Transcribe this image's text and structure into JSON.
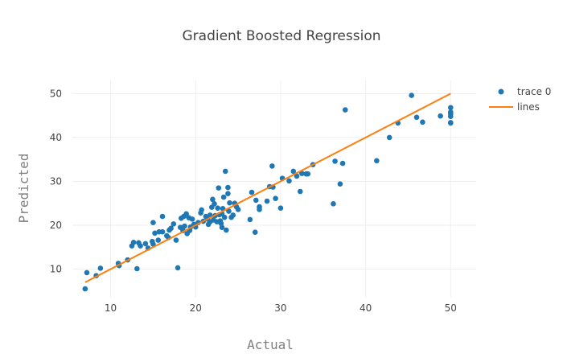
{
  "chart_data": {
    "type": "scatter",
    "title": "Gradient Boosted Regression",
    "xlabel": "Actual",
    "ylabel": "Predicted",
    "xlim": [
      5.5,
      53
    ],
    "ylim": [
      3.5,
      53
    ],
    "xticks": [
      10,
      20,
      30,
      40,
      50
    ],
    "yticks": [
      10,
      20,
      30,
      40,
      50
    ],
    "grid": true,
    "legend_position": "top-right",
    "series": [
      {
        "name": "trace 0",
        "mode": "markers",
        "color": "#1f77b4",
        "points": [
          [
            7.0,
            5.5
          ],
          [
            7.2,
            9.2
          ],
          [
            8.3,
            8.5
          ],
          [
            8.8,
            10.2
          ],
          [
            10.9,
            11.3
          ],
          [
            11.0,
            10.8
          ],
          [
            12.0,
            12.1
          ],
          [
            12.5,
            15.3
          ],
          [
            12.7,
            16.1
          ],
          [
            13.1,
            10.1
          ],
          [
            13.3,
            16.0
          ],
          [
            13.5,
            15.3
          ],
          [
            14.1,
            15.8
          ],
          [
            14.4,
            14.8
          ],
          [
            14.9,
            16.3
          ],
          [
            15.0,
            15.7
          ],
          [
            15.0,
            20.6
          ],
          [
            15.2,
            18.2
          ],
          [
            15.6,
            16.6
          ],
          [
            15.7,
            18.5
          ],
          [
            16.1,
            18.5
          ],
          [
            16.1,
            22.0
          ],
          [
            16.6,
            17.6
          ],
          [
            16.8,
            17.2
          ],
          [
            16.9,
            18.9
          ],
          [
            17.1,
            19.3
          ],
          [
            17.4,
            20.3
          ],
          [
            17.7,
            16.6
          ],
          [
            17.9,
            10.3
          ],
          [
            18.2,
            19.5
          ],
          [
            18.3,
            21.6
          ],
          [
            18.5,
            18.8
          ],
          [
            18.6,
            22.0
          ],
          [
            18.7,
            19.8
          ],
          [
            18.9,
            22.6
          ],
          [
            19.0,
            18.1
          ],
          [
            19.2,
            21.7
          ],
          [
            19.3,
            18.8
          ],
          [
            19.4,
            19.6
          ],
          [
            19.6,
            21.4
          ],
          [
            19.8,
            20.2
          ],
          [
            20.0,
            19.6
          ],
          [
            20.3,
            20.6
          ],
          [
            20.6,
            22.8
          ],
          [
            20.7,
            23.5
          ],
          [
            20.9,
            20.9
          ],
          [
            21.2,
            22.0
          ],
          [
            21.4,
            21.4
          ],
          [
            21.5,
            20.2
          ],
          [
            21.7,
            20.8
          ],
          [
            21.7,
            22.3
          ],
          [
            21.9,
            24.1
          ],
          [
            22.0,
            25.9
          ],
          [
            22.1,
            21.2
          ],
          [
            22.2,
            24.9
          ],
          [
            22.3,
            22.2
          ],
          [
            22.5,
            20.8
          ],
          [
            22.6,
            23.9
          ],
          [
            22.7,
            28.5
          ],
          [
            22.8,
            22.4
          ],
          [
            22.9,
            21.0
          ],
          [
            23.0,
            20.4
          ],
          [
            23.1,
            19.5
          ],
          [
            23.1,
            22.6
          ],
          [
            23.2,
            23.8
          ],
          [
            23.3,
            26.4
          ],
          [
            23.4,
            21.8
          ],
          [
            23.5,
            32.3
          ],
          [
            23.6,
            18.9
          ],
          [
            23.8,
            27.2
          ],
          [
            23.8,
            28.6
          ],
          [
            23.9,
            23.2
          ],
          [
            24.0,
            25.1
          ],
          [
            24.2,
            21.8
          ],
          [
            24.4,
            22.3
          ],
          [
            24.6,
            25.0
          ],
          [
            24.8,
            24.2
          ],
          [
            25.0,
            23.6
          ],
          [
            26.4,
            21.3
          ],
          [
            26.6,
            27.5
          ],
          [
            27.0,
            18.4
          ],
          [
            27.1,
            25.7
          ],
          [
            27.5,
            24.2
          ],
          [
            27.5,
            23.6
          ],
          [
            28.4,
            25.5
          ],
          [
            28.7,
            28.8
          ],
          [
            29.0,
            33.5
          ],
          [
            29.1,
            28.7
          ],
          [
            29.4,
            26.1
          ],
          [
            30.0,
            23.9
          ],
          [
            30.2,
            30.7
          ],
          [
            31.0,
            30.1
          ],
          [
            31.5,
            32.3
          ],
          [
            31.9,
            31.2
          ],
          [
            32.3,
            27.7
          ],
          [
            32.5,
            31.8
          ],
          [
            33.0,
            31.7
          ],
          [
            33.2,
            31.7
          ],
          [
            33.8,
            33.8
          ],
          [
            36.2,
            24.9
          ],
          [
            36.4,
            34.6
          ],
          [
            37.0,
            29.4
          ],
          [
            37.3,
            34.1
          ],
          [
            37.6,
            46.3
          ],
          [
            41.3,
            34.7
          ],
          [
            42.8,
            40.0
          ],
          [
            43.8,
            43.3
          ],
          [
            45.4,
            49.6
          ],
          [
            46.0,
            44.6
          ],
          [
            46.7,
            43.5
          ],
          [
            48.8,
            44.9
          ],
          [
            50.0,
            43.4
          ],
          [
            50.0,
            44.8
          ],
          [
            50.0,
            45.4
          ],
          [
            50.0,
            45.8
          ],
          [
            50.0,
            46.8
          ],
          [
            50.0,
            43.3
          ]
        ]
      },
      {
        "name": "lines",
        "mode": "lines",
        "color": "#ff7f0e",
        "x": [
          7.0,
          50.0
        ],
        "y": [
          7.0,
          50.0
        ]
      }
    ]
  }
}
